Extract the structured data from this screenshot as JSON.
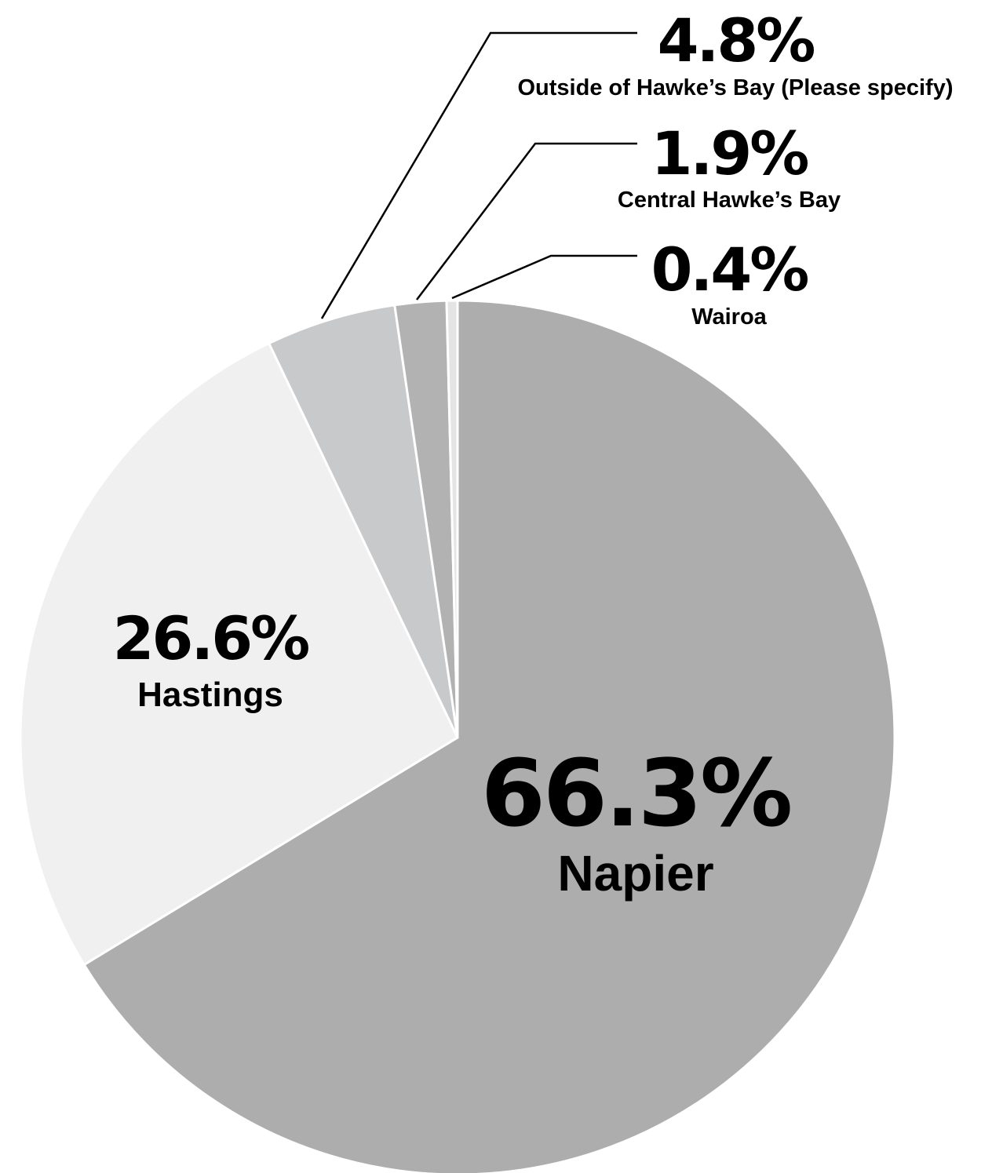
{
  "chart_data": {
    "type": "pie",
    "title": "",
    "slices": [
      {
        "label": "Napier",
        "value_label": "66.3%",
        "value": 66.3,
        "color": "#adadad"
      },
      {
        "label": "Hastings",
        "value_label": "26.6%",
        "value": 26.6,
        "color": "#f0f0f0"
      },
      {
        "label": "Outside of Hawke’s Bay (Please specify)",
        "value_label": "4.8%",
        "value": 4.8,
        "color": "#c8c9cb"
      },
      {
        "label": "Central Hawke’s Bay",
        "value_label": "1.9%",
        "value": 1.9,
        "color": "#b2b2b2"
      },
      {
        "label": "Wairoa",
        "value_label": "0.4%",
        "value": 0.4,
        "color": "#e4e4e4"
      }
    ],
    "start_angle": "12 o'clock",
    "direction": "clockwise",
    "legend": "none",
    "label_style": "inside for large slices, callout lines for small slices"
  }
}
